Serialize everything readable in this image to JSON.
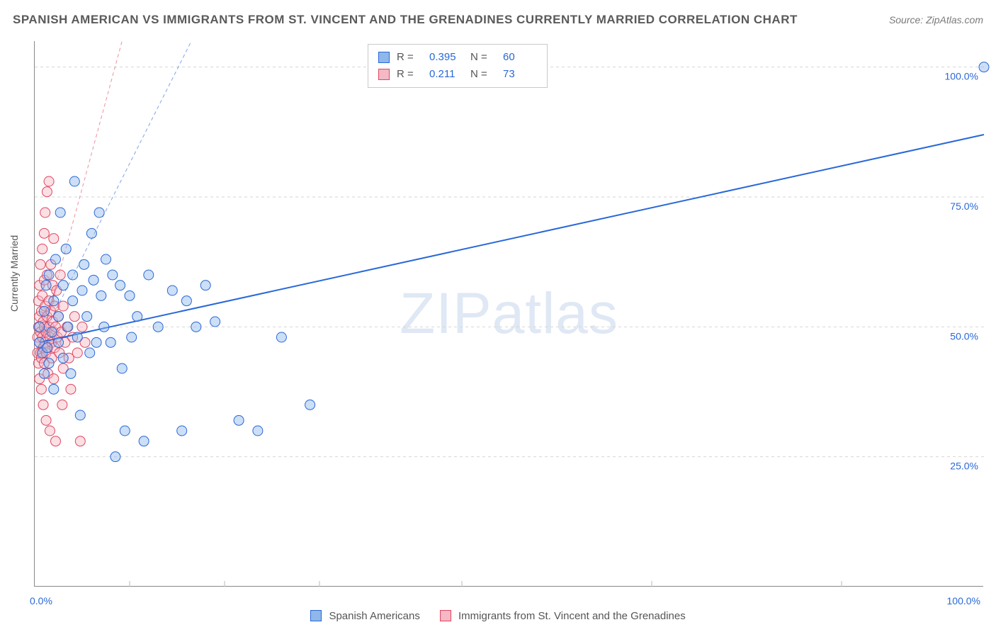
{
  "header": {
    "title": "SPANISH AMERICAN VS IMMIGRANTS FROM ST. VINCENT AND THE GRENADINES CURRENTLY MARRIED CORRELATION CHART",
    "source": "Source: ZipAtlas.com"
  },
  "watermark": {
    "z": "ZIP",
    "rest": "atlas"
  },
  "chart": {
    "type": "scatter",
    "y_axis_label": "Currently Married",
    "x_origin_label": "0.0%",
    "x_max_label": "100.0%",
    "xlim": [
      0,
      100
    ],
    "ylim": [
      0,
      105
    ],
    "y_ticks": [
      25,
      50,
      75,
      100
    ],
    "y_tick_labels": [
      "25.0%",
      "50.0%",
      "75.0%",
      "100.0%"
    ],
    "x_minor_ticks": [
      10,
      20,
      30,
      45,
      65,
      85
    ],
    "background_color": "#ffffff",
    "grid_color": "#d6d6d6",
    "marker_radius": 7,
    "marker_opacity": 0.45,
    "series": [
      {
        "name": "Spanish Americans",
        "fill": "#8fb7ea",
        "stroke": "#2968d8",
        "trend": {
          "x1": 0.5,
          "y1": 47,
          "x2": 100,
          "y2": 87,
          "width": 2
        },
        "ext": {
          "x1": 0.5,
          "y1": 47,
          "x2": 16.5,
          "y2": 105,
          "dash": "5,4"
        },
        "points": [
          [
            0.5,
            47
          ],
          [
            0.5,
            50
          ],
          [
            0.8,
            45
          ],
          [
            1,
            53
          ],
          [
            1,
            41
          ],
          [
            1.2,
            58
          ],
          [
            1.3,
            46
          ],
          [
            1.5,
            60
          ],
          [
            1.5,
            43
          ],
          [
            1.8,
            49
          ],
          [
            2,
            55
          ],
          [
            2,
            38
          ],
          [
            2.2,
            63
          ],
          [
            2.5,
            47
          ],
          [
            2.5,
            52
          ],
          [
            2.7,
            72
          ],
          [
            3,
            58
          ],
          [
            3,
            44
          ],
          [
            3.3,
            65
          ],
          [
            3.5,
            50
          ],
          [
            3.8,
            41
          ],
          [
            4,
            60
          ],
          [
            4,
            55
          ],
          [
            4.2,
            78
          ],
          [
            4.5,
            48
          ],
          [
            4.8,
            33
          ],
          [
            5,
            57
          ],
          [
            5.2,
            62
          ],
          [
            5.5,
            52
          ],
          [
            5.8,
            45
          ],
          [
            6,
            68
          ],
          [
            6.2,
            59
          ],
          [
            6.5,
            47
          ],
          [
            6.8,
            72
          ],
          [
            7,
            56
          ],
          [
            7.3,
            50
          ],
          [
            7.5,
            63
          ],
          [
            8,
            47
          ],
          [
            8.2,
            60
          ],
          [
            8.5,
            25
          ],
          [
            9,
            58
          ],
          [
            9.2,
            42
          ],
          [
            9.5,
            30
          ],
          [
            10,
            56
          ],
          [
            10.2,
            48
          ],
          [
            10.8,
            52
          ],
          [
            11.5,
            28
          ],
          [
            12,
            60
          ],
          [
            13,
            50
          ],
          [
            14.5,
            57
          ],
          [
            15.5,
            30
          ],
          [
            16,
            55
          ],
          [
            17,
            50
          ],
          [
            18,
            58
          ],
          [
            19,
            51
          ],
          [
            21.5,
            32
          ],
          [
            23.5,
            30
          ],
          [
            26,
            48
          ],
          [
            29,
            35
          ],
          [
            100,
            100
          ]
        ]
      },
      {
        "name": "Immigrants from St. Vincent and the Grenadines",
        "fill": "#f4b8c6",
        "stroke": "#e0475f",
        "trend": {
          "x1": 0.3,
          "y1": 45,
          "x2": 2.3,
          "y2": 58,
          "width": 2
        },
        "ext": {
          "x1": 0.3,
          "y1": 45,
          "x2": 9.2,
          "y2": 105,
          "dash": "5,4"
        },
        "points": [
          [
            0.3,
            45
          ],
          [
            0.3,
            48
          ],
          [
            0.4,
            50
          ],
          [
            0.4,
            43
          ],
          [
            0.4,
            55
          ],
          [
            0.5,
            47
          ],
          [
            0.5,
            52
          ],
          [
            0.5,
            40
          ],
          [
            0.5,
            58
          ],
          [
            0.6,
            45
          ],
          [
            0.6,
            49
          ],
          [
            0.6,
            62
          ],
          [
            0.7,
            44
          ],
          [
            0.7,
            53
          ],
          [
            0.7,
            38
          ],
          [
            0.8,
            48
          ],
          [
            0.8,
            56
          ],
          [
            0.8,
            65
          ],
          [
            0.9,
            46
          ],
          [
            0.9,
            51
          ],
          [
            0.9,
            35
          ],
          [
            1,
            50
          ],
          [
            1,
            43
          ],
          [
            1,
            59
          ],
          [
            1,
            68
          ],
          [
            1.1,
            47
          ],
          [
            1.1,
            54
          ],
          [
            1.1,
            72
          ],
          [
            1.2,
            45
          ],
          [
            1.2,
            49
          ],
          [
            1.2,
            32
          ],
          [
            1.3,
            52
          ],
          [
            1.3,
            60
          ],
          [
            1.3,
            76
          ],
          [
            1.4,
            46
          ],
          [
            1.4,
            41
          ],
          [
            1.5,
            50
          ],
          [
            1.5,
            55
          ],
          [
            1.5,
            78
          ],
          [
            1.6,
            48
          ],
          [
            1.6,
            30
          ],
          [
            1.7,
            53
          ],
          [
            1.7,
            62
          ],
          [
            1.8,
            47
          ],
          [
            1.8,
            44
          ],
          [
            1.9,
            51
          ],
          [
            1.9,
            58
          ],
          [
            2,
            49
          ],
          [
            2,
            40
          ],
          [
            2,
            67
          ],
          [
            2.1,
            54
          ],
          [
            2.1,
            46
          ],
          [
            2.2,
            50
          ],
          [
            2.2,
            28
          ],
          [
            2.3,
            57
          ],
          [
            2.4,
            48
          ],
          [
            2.5,
            52
          ],
          [
            2.6,
            45
          ],
          [
            2.7,
            60
          ],
          [
            2.8,
            49
          ],
          [
            2.9,
            35
          ],
          [
            3,
            42
          ],
          [
            3,
            54
          ],
          [
            3.2,
            47
          ],
          [
            3.4,
            50
          ],
          [
            3.6,
            44
          ],
          [
            3.8,
            38
          ],
          [
            4,
            48
          ],
          [
            4.2,
            52
          ],
          [
            4.5,
            45
          ],
          [
            4.8,
            28
          ],
          [
            5,
            50
          ],
          [
            5.3,
            47
          ]
        ]
      }
    ],
    "stats_legend": {
      "rows": [
        {
          "swatch_fill": "#8fb7ea",
          "swatch_stroke": "#2968d8",
          "r_label": "R =",
          "r": "0.395",
          "n_label": "N =",
          "n": "60"
        },
        {
          "swatch_fill": "#f4b8c6",
          "swatch_stroke": "#e0475f",
          "r_label": "R =",
          "r": "0.211",
          "n_label": "N =",
          "n": "73"
        }
      ]
    }
  },
  "bottom_legend": {
    "items": [
      {
        "fill": "#8fb7ea",
        "stroke": "#2968d8",
        "label": "Spanish Americans"
      },
      {
        "fill": "#f4b8c6",
        "stroke": "#e0475f",
        "label": "Immigrants from St. Vincent and the Grenadines"
      }
    ]
  }
}
